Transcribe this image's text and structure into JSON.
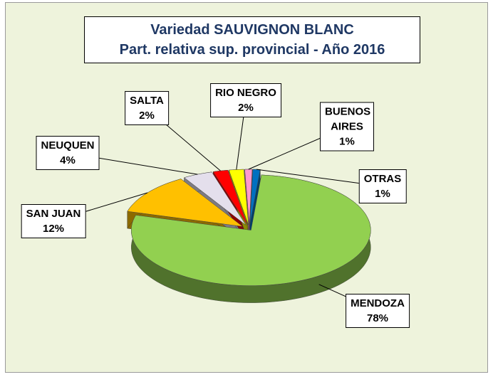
{
  "chart_data": {
    "type": "pie3d",
    "title": [
      "Variedad SAUVIGNON BLANC",
      "Part. relativa sup. provincial  - Año 2016"
    ],
    "categories": [
      "MENDOZA",
      "SAN JUAN",
      "NEUQUEN",
      "SALTA",
      "RIO NEGRO",
      "BUENOS AIRES",
      "OTRAS"
    ],
    "values": [
      78,
      12,
      4,
      2,
      2,
      1,
      1
    ],
    "value_labels": [
      "78%",
      "12%",
      "4%",
      "2%",
      "2%",
      "1%",
      "1%"
    ],
    "colors": [
      "#92d050",
      "#ffc000",
      "#e4dfec",
      "#ff0000",
      "#ffff00",
      "#ff99cc",
      "#0070c0"
    ]
  }
}
